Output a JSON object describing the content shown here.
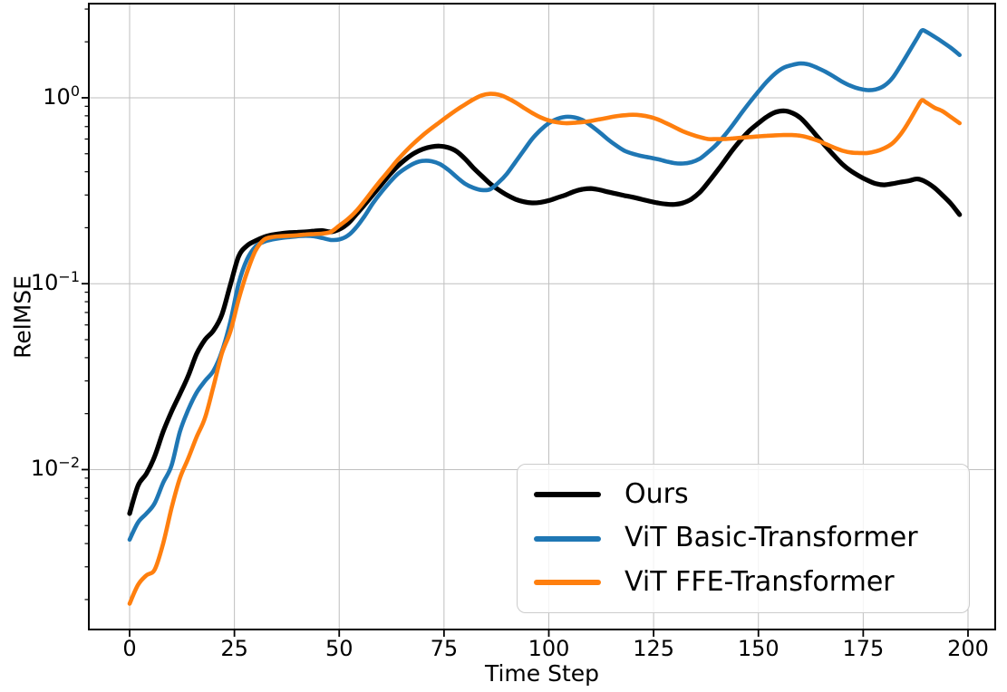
{
  "figure": {
    "background": "#ffffff"
  },
  "chart_data": {
    "type": "line",
    "title": "",
    "xlabel": "Time Step",
    "ylabel": "RelMSE",
    "grid": true,
    "legend_position": "lower right",
    "x_ticks": [
      0,
      25,
      50,
      75,
      100,
      125,
      150,
      175,
      200
    ],
    "x_tick_labels": [
      "0",
      "25",
      "50",
      "75",
      "100",
      "125",
      "150",
      "175",
      "200"
    ],
    "xlim": [
      -9.73,
      206.49
    ],
    "y_scale": "log",
    "ylim": [
      0.00138,
      3.21
    ],
    "y_tick_base": "10",
    "y_ticks": [
      {
        "value": 1,
        "exp": "0"
      },
      {
        "value": 0.1,
        "exp": "−1"
      },
      {
        "value": 0.01,
        "exp": "−2"
      }
    ],
    "grid_color": "#bfbfbf",
    "axis_color": "#000000",
    "series": [
      {
        "name": "Ours",
        "color": "#000000",
        "line_width": 5.2,
        "points": [
          [
            0,
            0.0058
          ],
          [
            2,
            0.0082
          ],
          [
            4,
            0.0095
          ],
          [
            6,
            0.0118
          ],
          [
            8,
            0.016
          ],
          [
            10,
            0.0205
          ],
          [
            12,
            0.0255
          ],
          [
            14,
            0.032
          ],
          [
            16,
            0.042
          ],
          [
            18,
            0.05
          ],
          [
            20,
            0.056
          ],
          [
            22,
            0.068
          ],
          [
            24,
            0.098
          ],
          [
            26,
            0.14
          ],
          [
            28,
            0.16
          ],
          [
            30,
            0.17
          ],
          [
            32,
            0.178
          ],
          [
            34,
            0.183
          ],
          [
            36,
            0.186
          ],
          [
            38,
            0.188
          ],
          [
            40,
            0.189
          ],
          [
            42,
            0.19
          ],
          [
            44,
            0.192
          ],
          [
            46,
            0.193
          ],
          [
            48,
            0.19
          ],
          [
            50,
            0.196
          ],
          [
            52,
            0.21
          ],
          [
            54,
            0.235
          ],
          [
            56,
            0.265
          ],
          [
            58,
            0.3
          ],
          [
            60,
            0.34
          ],
          [
            62,
            0.385
          ],
          [
            64,
            0.43
          ],
          [
            66,
            0.47
          ],
          [
            68,
            0.505
          ],
          [
            70,
            0.53
          ],
          [
            72,
            0.545
          ],
          [
            74,
            0.55
          ],
          [
            76,
            0.54
          ],
          [
            78,
            0.515
          ],
          [
            80,
            0.47
          ],
          [
            82,
            0.42
          ],
          [
            84,
            0.38
          ],
          [
            86,
            0.345
          ],
          [
            88,
            0.32
          ],
          [
            90,
            0.3
          ],
          [
            92,
            0.285
          ],
          [
            94,
            0.276
          ],
          [
            96,
            0.272
          ],
          [
            98,
            0.274
          ],
          [
            100,
            0.28
          ],
          [
            102,
            0.29
          ],
          [
            104,
            0.3
          ],
          [
            106,
            0.313
          ],
          [
            108,
            0.322
          ],
          [
            110,
            0.325
          ],
          [
            112,
            0.32
          ],
          [
            114,
            0.312
          ],
          [
            116,
            0.305
          ],
          [
            118,
            0.298
          ],
          [
            120,
            0.292
          ],
          [
            122,
            0.285
          ],
          [
            124,
            0.278
          ],
          [
            126,
            0.272
          ],
          [
            128,
            0.268
          ],
          [
            130,
            0.267
          ],
          [
            132,
            0.272
          ],
          [
            134,
            0.285
          ],
          [
            136,
            0.31
          ],
          [
            138,
            0.35
          ],
          [
            140,
            0.4
          ],
          [
            142,
            0.46
          ],
          [
            144,
            0.53
          ],
          [
            146,
            0.6
          ],
          [
            148,
            0.67
          ],
          [
            150,
            0.73
          ],
          [
            152,
            0.79
          ],
          [
            154,
            0.835
          ],
          [
            156,
            0.85
          ],
          [
            158,
            0.83
          ],
          [
            160,
            0.78
          ],
          [
            162,
            0.7
          ],
          [
            164,
            0.62
          ],
          [
            166,
            0.55
          ],
          [
            168,
            0.49
          ],
          [
            170,
            0.44
          ],
          [
            172,
            0.405
          ],
          [
            174,
            0.38
          ],
          [
            176,
            0.36
          ],
          [
            178,
            0.345
          ],
          [
            180,
            0.34
          ],
          [
            182,
            0.345
          ],
          [
            184,
            0.352
          ],
          [
            186,
            0.358
          ],
          [
            188,
            0.366
          ],
          [
            190,
            0.352
          ],
          [
            192,
            0.328
          ],
          [
            194,
            0.298
          ],
          [
            196,
            0.268
          ],
          [
            198,
            0.235
          ]
        ]
      },
      {
        "name": "ViT Basic-Transformer",
        "color": "#1f77b4",
        "line_width": 4.6,
        "points": [
          [
            0,
            0.0042
          ],
          [
            2,
            0.0052
          ],
          [
            4,
            0.0058
          ],
          [
            6,
            0.0066
          ],
          [
            8,
            0.0085
          ],
          [
            10,
            0.0105
          ],
          [
            12,
            0.016
          ],
          [
            14,
            0.021
          ],
          [
            16,
            0.026
          ],
          [
            18,
            0.03
          ],
          [
            20,
            0.034
          ],
          [
            22,
            0.043
          ],
          [
            24,
            0.062
          ],
          [
            26,
            0.1
          ],
          [
            28,
            0.135
          ],
          [
            30,
            0.158
          ],
          [
            32,
            0.168
          ],
          [
            34,
            0.173
          ],
          [
            36,
            0.176
          ],
          [
            38,
            0.178
          ],
          [
            40,
            0.18
          ],
          [
            42,
            0.181
          ],
          [
            44,
            0.18
          ],
          [
            46,
            0.176
          ],
          [
            48,
            0.172
          ],
          [
            50,
            0.173
          ],
          [
            52,
            0.181
          ],
          [
            54,
            0.2
          ],
          [
            56,
            0.23
          ],
          [
            58,
            0.27
          ],
          [
            60,
            0.31
          ],
          [
            62,
            0.35
          ],
          [
            64,
            0.39
          ],
          [
            66,
            0.42
          ],
          [
            68,
            0.445
          ],
          [
            70,
            0.458
          ],
          [
            72,
            0.456
          ],
          [
            74,
            0.44
          ],
          [
            76,
            0.41
          ],
          [
            78,
            0.375
          ],
          [
            80,
            0.345
          ],
          [
            82,
            0.328
          ],
          [
            84,
            0.319
          ],
          [
            86,
            0.322
          ],
          [
            88,
            0.35
          ],
          [
            90,
            0.39
          ],
          [
            92,
            0.45
          ],
          [
            94,
            0.52
          ],
          [
            96,
            0.6
          ],
          [
            98,
            0.67
          ],
          [
            100,
            0.73
          ],
          [
            102,
            0.77
          ],
          [
            104,
            0.79
          ],
          [
            106,
            0.785
          ],
          [
            108,
            0.76
          ],
          [
            110,
            0.71
          ],
          [
            112,
            0.655
          ],
          [
            114,
            0.6
          ],
          [
            116,
            0.555
          ],
          [
            118,
            0.52
          ],
          [
            120,
            0.5
          ],
          [
            122,
            0.487
          ],
          [
            124,
            0.477
          ],
          [
            126,
            0.467
          ],
          [
            128,
            0.455
          ],
          [
            130,
            0.445
          ],
          [
            132,
            0.443
          ],
          [
            134,
            0.45
          ],
          [
            136,
            0.47
          ],
          [
            138,
            0.51
          ],
          [
            140,
            0.56
          ],
          [
            142,
            0.63
          ],
          [
            144,
            0.72
          ],
          [
            146,
            0.83
          ],
          [
            148,
            0.95
          ],
          [
            150,
            1.08
          ],
          [
            152,
            1.22
          ],
          [
            154,
            1.35
          ],
          [
            156,
            1.45
          ],
          [
            158,
            1.5
          ],
          [
            160,
            1.53
          ],
          [
            162,
            1.51
          ],
          [
            164,
            1.45
          ],
          [
            166,
            1.38
          ],
          [
            168,
            1.3
          ],
          [
            170,
            1.22
          ],
          [
            172,
            1.16
          ],
          [
            174,
            1.12
          ],
          [
            176,
            1.1
          ],
          [
            178,
            1.11
          ],
          [
            180,
            1.16
          ],
          [
            182,
            1.28
          ],
          [
            184,
            1.5
          ],
          [
            186,
            1.78
          ],
          [
            188,
            2.12
          ],
          [
            189,
            2.3
          ],
          [
            190,
            2.27
          ],
          [
            192,
            2.13
          ],
          [
            194,
            1.99
          ],
          [
            196,
            1.85
          ],
          [
            198,
            1.7
          ]
        ]
      },
      {
        "name": "ViT FFE-Transformer",
        "color": "#ff7f0e",
        "line_width": 4.6,
        "points": [
          [
            0,
            0.0019
          ],
          [
            2,
            0.0024
          ],
          [
            4,
            0.0027
          ],
          [
            6,
            0.0029
          ],
          [
            8,
            0.004
          ],
          [
            10,
            0.0062
          ],
          [
            12,
            0.009
          ],
          [
            14,
            0.0115
          ],
          [
            16,
            0.015
          ],
          [
            18,
            0.019
          ],
          [
            20,
            0.028
          ],
          [
            22,
            0.042
          ],
          [
            24,
            0.055
          ],
          [
            26,
            0.082
          ],
          [
            28,
            0.115
          ],
          [
            30,
            0.15
          ],
          [
            32,
            0.172
          ],
          [
            34,
            0.178
          ],
          [
            36,
            0.18
          ],
          [
            38,
            0.181
          ],
          [
            40,
            0.182
          ],
          [
            42,
            0.184
          ],
          [
            44,
            0.185
          ],
          [
            46,
            0.186
          ],
          [
            48,
            0.19
          ],
          [
            50,
            0.205
          ],
          [
            52,
            0.222
          ],
          [
            54,
            0.245
          ],
          [
            56,
            0.278
          ],
          [
            58,
            0.318
          ],
          [
            60,
            0.362
          ],
          [
            62,
            0.41
          ],
          [
            64,
            0.465
          ],
          [
            66,
            0.52
          ],
          [
            68,
            0.575
          ],
          [
            70,
            0.63
          ],
          [
            72,
            0.685
          ],
          [
            74,
            0.74
          ],
          [
            76,
            0.8
          ],
          [
            78,
            0.86
          ],
          [
            80,
            0.92
          ],
          [
            82,
            0.98
          ],
          [
            84,
            1.03
          ],
          [
            86,
            1.05
          ],
          [
            88,
            1.04
          ],
          [
            90,
            1.0
          ],
          [
            92,
            0.945
          ],
          [
            94,
            0.885
          ],
          [
            96,
            0.83
          ],
          [
            98,
            0.785
          ],
          [
            100,
            0.755
          ],
          [
            102,
            0.738
          ],
          [
            104,
            0.73
          ],
          [
            106,
            0.733
          ],
          [
            108,
            0.74
          ],
          [
            110,
            0.75
          ],
          [
            112,
            0.765
          ],
          [
            114,
            0.78
          ],
          [
            116,
            0.795
          ],
          [
            118,
            0.805
          ],
          [
            120,
            0.81
          ],
          [
            122,
            0.805
          ],
          [
            124,
            0.79
          ],
          [
            126,
            0.765
          ],
          [
            128,
            0.73
          ],
          [
            130,
            0.695
          ],
          [
            132,
            0.66
          ],
          [
            134,
            0.635
          ],
          [
            136,
            0.615
          ],
          [
            138,
            0.6
          ],
          [
            140,
            0.6
          ],
          [
            142,
            0.6
          ],
          [
            144,
            0.605
          ],
          [
            146,
            0.61
          ],
          [
            148,
            0.615
          ],
          [
            150,
            0.62
          ],
          [
            152,
            0.625
          ],
          [
            154,
            0.628
          ],
          [
            156,
            0.63
          ],
          [
            158,
            0.63
          ],
          [
            160,
            0.625
          ],
          [
            162,
            0.61
          ],
          [
            164,
            0.59
          ],
          [
            166,
            0.565
          ],
          [
            168,
            0.54
          ],
          [
            170,
            0.52
          ],
          [
            172,
            0.508
          ],
          [
            174,
            0.505
          ],
          [
            176,
            0.505
          ],
          [
            178,
            0.515
          ],
          [
            180,
            0.535
          ],
          [
            182,
            0.57
          ],
          [
            184,
            0.64
          ],
          [
            186,
            0.75
          ],
          [
            188,
            0.9
          ],
          [
            189,
            0.97
          ],
          [
            190,
            0.945
          ],
          [
            192,
            0.885
          ],
          [
            194,
            0.845
          ],
          [
            196,
            0.785
          ],
          [
            198,
            0.73
          ]
        ]
      }
    ]
  }
}
